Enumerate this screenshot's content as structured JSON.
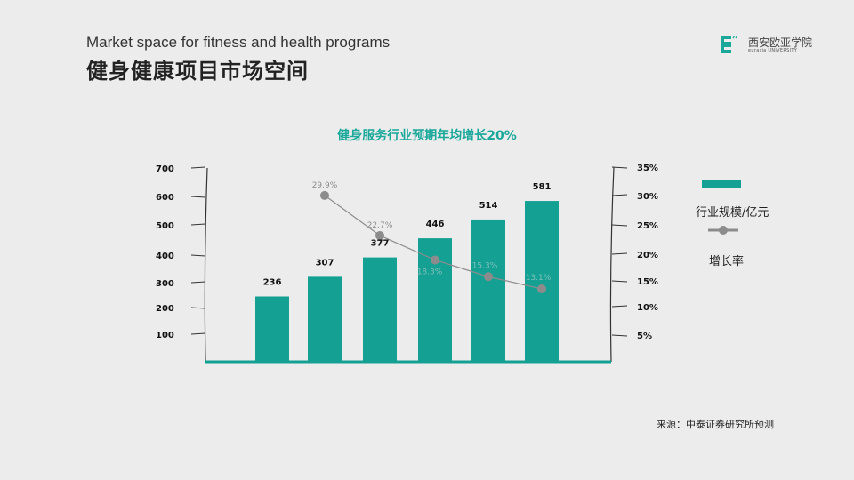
{
  "header": {
    "subtitle_en": "Market space for fitness and health programs",
    "title_cn": "健身健康项目市场空间"
  },
  "logo": {
    "name": "西安欧亚学院",
    "sub": "eurasia UNIVERSITY",
    "color": "#19a89a"
  },
  "chart_data": {
    "type": "bar",
    "title": "健身服务行业预期年均增长20%",
    "categories": [
      "",
      "",
      "",
      "",
      "",
      ""
    ],
    "series": [
      {
        "name": "行业规模/亿元",
        "type": "bar",
        "axis": "left",
        "values": [
          236,
          307,
          377,
          446,
          514,
          581
        ],
        "labels": [
          "236",
          "307",
          "377",
          "446",
          "514",
          "581"
        ],
        "color": "#14a194"
      },
      {
        "name": "增长率",
        "type": "line",
        "axis": "right",
        "values": [
          null,
          29.9,
          22.7,
          18.3,
          15.3,
          13.1
        ],
        "labels": [
          "",
          "29.9%",
          "22.7%",
          "18.3%",
          "15.3%",
          "13.1%"
        ],
        "color": "#8c8c8c"
      }
    ],
    "y_left": {
      "ticks": [
        100,
        200,
        300,
        400,
        500,
        600,
        700
      ],
      "tick_labels": [
        "100",
        "200",
        "300",
        "400",
        "500",
        "600",
        "700"
      ],
      "ylim": [
        0,
        700
      ]
    },
    "y_right": {
      "ticks": [
        5,
        10,
        15,
        20,
        25,
        30,
        35
      ],
      "tick_labels": [
        "5%",
        "10%",
        "15%",
        "20%",
        "25%",
        "30%",
        "35%"
      ],
      "ylim": [
        0,
        35
      ]
    },
    "grid": false,
    "legend_position": "right"
  },
  "legend": {
    "bar_label": "行业规模/亿元",
    "line_label": "增长率"
  },
  "source": "来源：中泰证券研究所预测",
  "colors": {
    "accent": "#14a194",
    "line": "#8c8c8c",
    "background": "#ececec"
  }
}
